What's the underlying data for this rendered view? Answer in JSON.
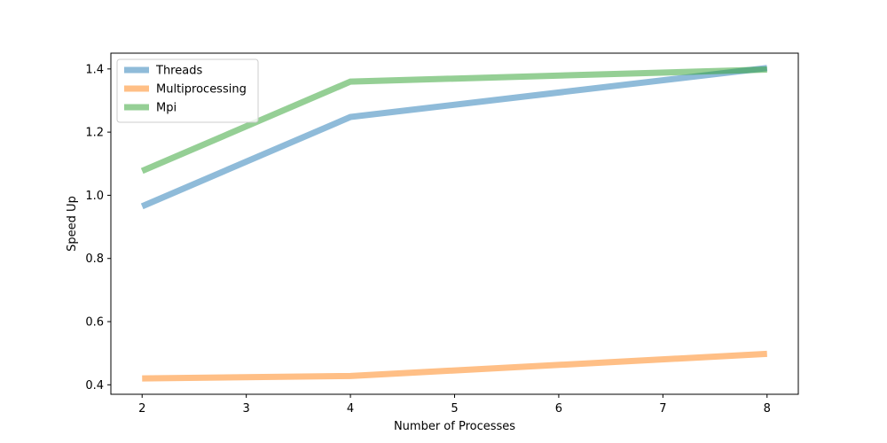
{
  "chart_data": {
    "type": "line",
    "title": "",
    "xlabel": "Number of Processes",
    "ylabel": "Speed Up",
    "x": [
      2,
      4,
      8
    ],
    "xlim": [
      1.7,
      8.3
    ],
    "ylim": [
      0.37,
      1.45
    ],
    "x_ticks": [
      2,
      3,
      4,
      5,
      6,
      7,
      8
    ],
    "y_ticks": [
      0.4,
      0.6,
      0.8,
      1.0,
      1.2,
      1.4
    ],
    "grid": false,
    "legend_position": "top-left",
    "series": [
      {
        "name": "Threads",
        "values": [
          0.965,
          1.248,
          1.403
        ],
        "color": "#1f77b4"
      },
      {
        "name": "Multiprocessing",
        "values": [
          0.42,
          0.428,
          0.498
        ],
        "color": "#ff7f0e"
      },
      {
        "name": "Mpi",
        "values": [
          1.077,
          1.36,
          1.398
        ],
        "color": "#2ca02c"
      }
    ]
  }
}
